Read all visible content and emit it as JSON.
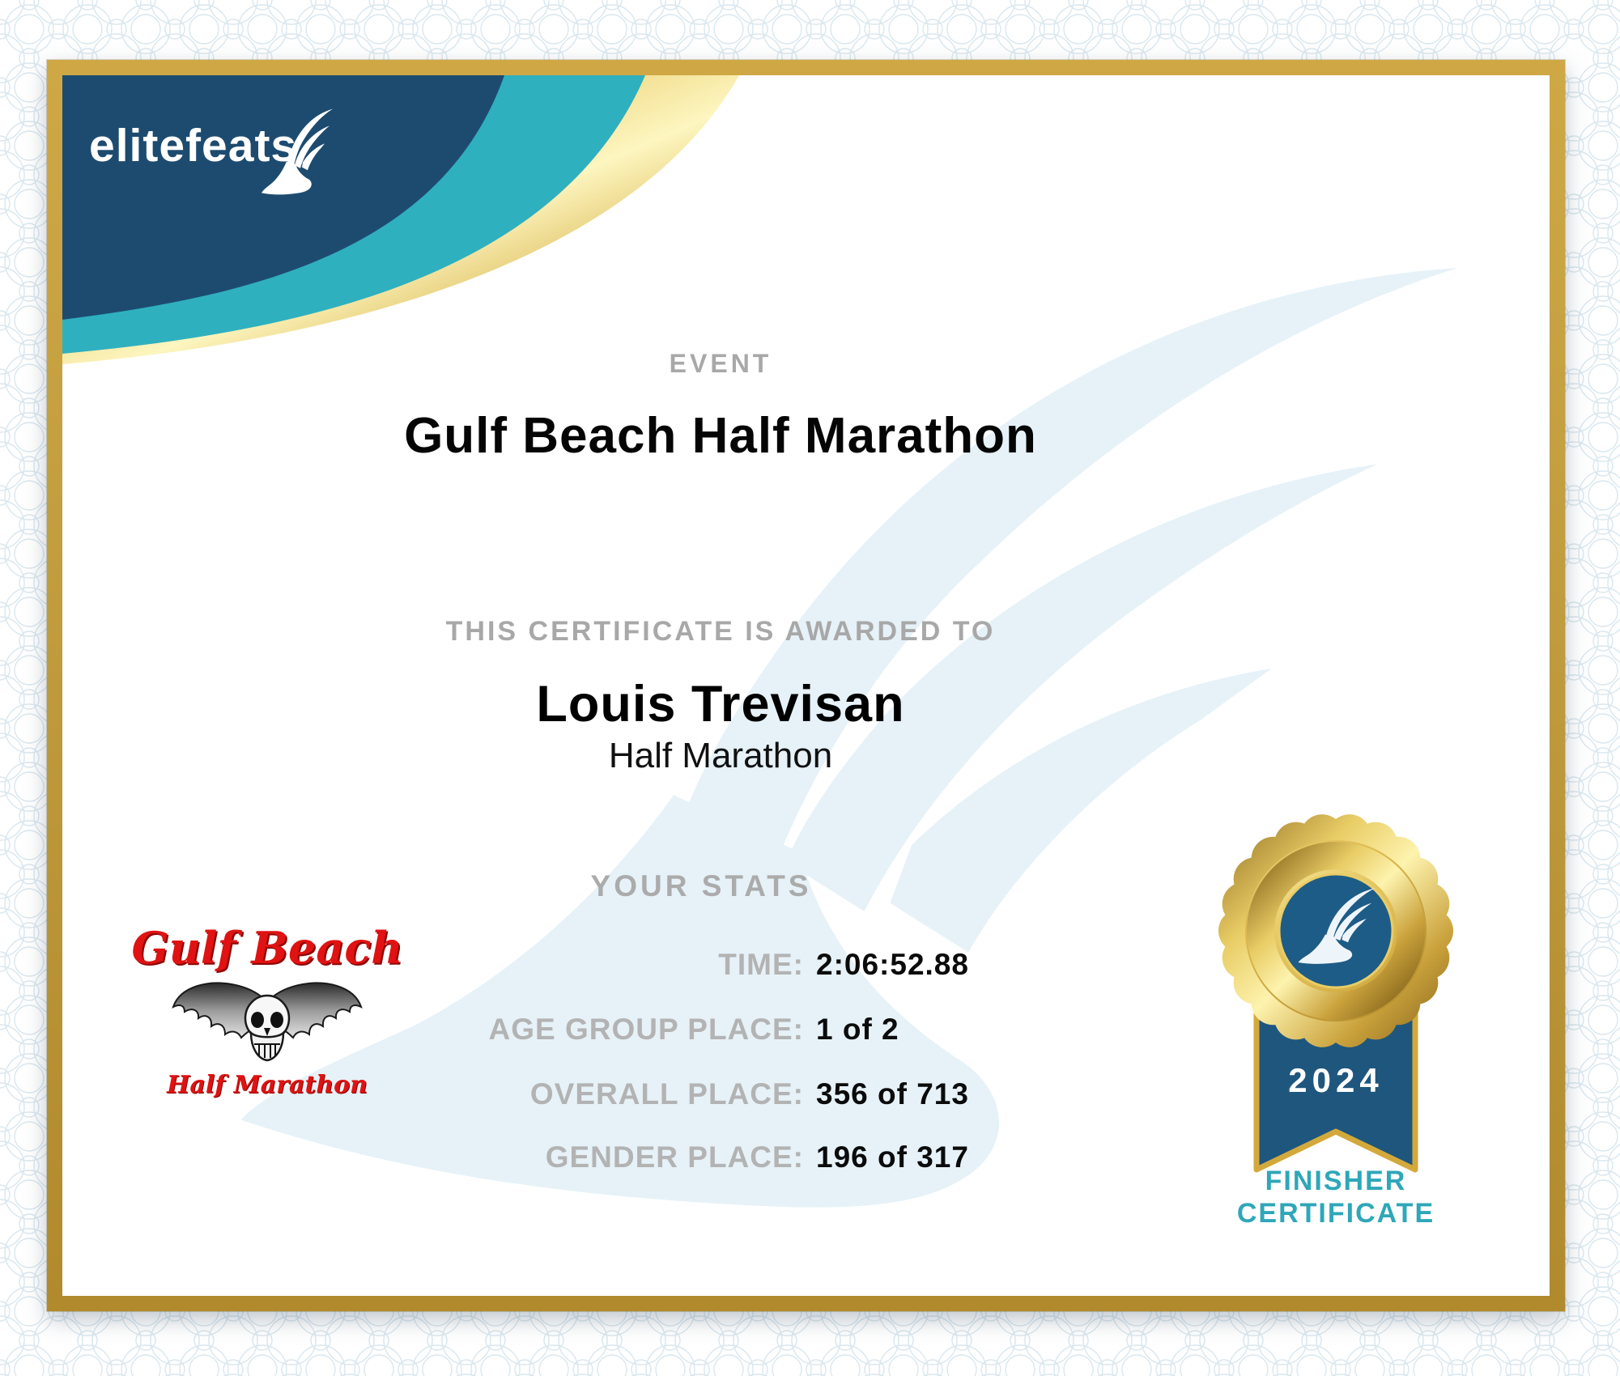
{
  "certificate": {
    "brand": {
      "name": "elitefeats"
    },
    "event": {
      "label": "EVENT",
      "name": "Gulf Beach Half Marathon"
    },
    "award_line": "THIS CERTIFICATE IS AWARDED TO",
    "recipient": {
      "name": "Louis Trevisan",
      "division": "Half Marathon"
    },
    "stats": {
      "heading": "YOUR STATS",
      "rows": [
        {
          "label": "TIME:",
          "value": "2:06:52.88"
        },
        {
          "label": "AGE GROUP PLACE:",
          "value": "1 of 2"
        },
        {
          "label": "OVERALL PLACE:",
          "value": "356 of 713"
        },
        {
          "label": "GENDER PLACE:",
          "value": "196 of 317"
        }
      ]
    },
    "event_logo": {
      "title": "Gulf Beach",
      "subtitle": "Half Marathon"
    },
    "badge": {
      "year": "2024",
      "caption": [
        "FINISHER",
        "CERTIFICATE"
      ]
    },
    "colors": {
      "navy": "#1d4b70",
      "teal": "#2fb0bf",
      "frame_gold": "#c09c3e",
      "swoosh_gold": "#e3c259",
      "watermark_blue": "#e6f2f8",
      "caption_gray": "#a8a8a8",
      "stat_label_gray": "#b3b3b3",
      "logo_red": "#e01212",
      "ribbon_blue": "#1e567e",
      "medal_disc_blue": "#1d5c86",
      "badge_caption_teal": "#2ea7b9",
      "guilloche_blue": "#d9e7ef"
    }
  }
}
